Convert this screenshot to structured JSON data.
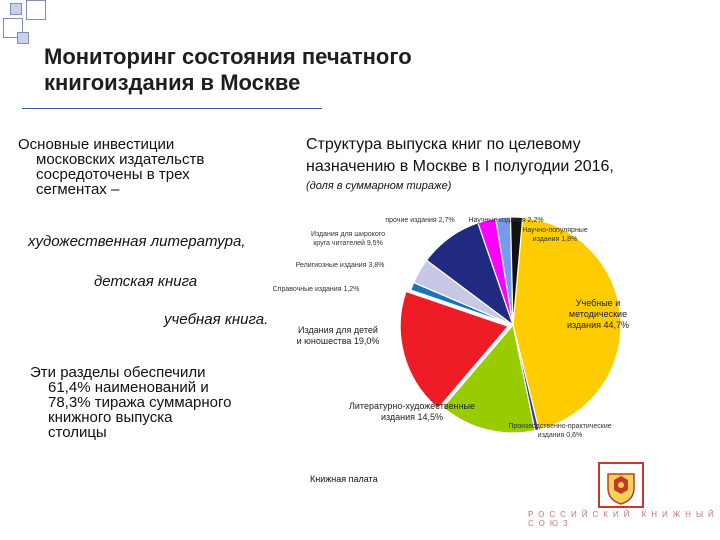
{
  "slide": {
    "title_line1": "Мониторинг состояния печатного",
    "title_line2": "книгоиздания в Москве",
    "intro_line1": "Основные инвестиции",
    "intro_line2": "московских издательств",
    "intro_line3": "сосредоточены в трех",
    "intro_line4": "сегментах –",
    "segment1": "художественная литература,",
    "segment2": "детская книга",
    "segment3": "учебная книга.",
    "summary_line1": "Эти разделы обеспечили",
    "summary_line2": "61,4% наименований и",
    "summary_line3": "78,3% тиража суммарного",
    "summary_line4": "книжного выпуска",
    "summary_line5": "столицы",
    "chart_heading_line1": "Структура выпуска книг по целевому",
    "chart_heading_line2": "назначению в Москве в I полугодии 2016,",
    "chart_subheading": "(доля в суммарном тираже)",
    "source": "Книжная палата",
    "footer": "РОССИЙСКИЙ КНИЖНЫЙ СОЮЗ"
  },
  "colors": {
    "deco_square_fill": "#c9d2e6",
    "title_rule": "#3b5aa5"
  },
  "chart_data": {
    "type": "pie",
    "title": "Структура выпуска книг по целевому назначению в Москве в I полугодии 2016,",
    "subtitle": "(доля в суммарном тираже)",
    "slices": [
      {
        "label": "Учебные и методические издания 44,7%",
        "value": 44.7,
        "color": "#ffcc00"
      },
      {
        "label": "Производственно-практические издания 0,6%",
        "value": 0.6,
        "color": "#3a3a8c"
      },
      {
        "label": "Литературно-художественные издания 14,5%",
        "value": 14.5,
        "color": "#99cc00"
      },
      {
        "label": "Издания для детей и юношества 19,0%",
        "value": 19.0,
        "color": "#ee1c24"
      },
      {
        "label": "Справочные издания 1,2%",
        "value": 1.2,
        "color": "#1f6fbf"
      },
      {
        "label": "Религиозные издания 3,8%",
        "value": 3.8,
        "color": "#c8c8e6"
      },
      {
        "label": "Издания для широкого круга читателей 9,5%",
        "value": 9.5,
        "color": "#1f2a80"
      },
      {
        "label": "прочие издания 2,7%",
        "value": 2.7,
        "color": "#ff00ff"
      },
      {
        "label": "Научные издания 2,2%",
        "value": 2.2,
        "color": "#7799ee"
      },
      {
        "label": "Научно-популярные издания 1,8%",
        "value": 1.8,
        "color": "#111111"
      }
    ]
  }
}
